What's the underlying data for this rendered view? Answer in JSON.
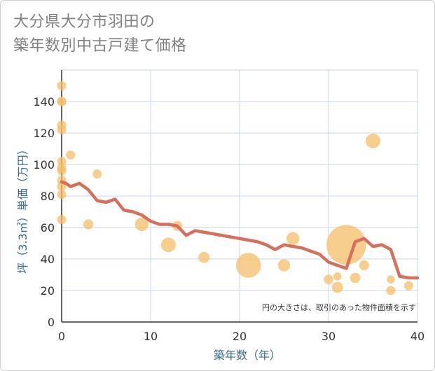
{
  "title": {
    "line1": "大分県大分市羽田の",
    "line2": "築年数別中古戸建て価格"
  },
  "chart_data": {
    "type": "scatter",
    "xlabel": "築年数（年）",
    "ylabel": "坪（3.3㎡）単価（万円）",
    "xlim": [
      0,
      40
    ],
    "ylim": [
      0,
      160
    ],
    "xticks": [
      0,
      10,
      20,
      30,
      40
    ],
    "yticks": [
      0,
      20,
      40,
      60,
      80,
      100,
      120,
      140
    ],
    "grid": true,
    "annotation": "円の大きさは、取引のあった物件面積を示す",
    "colors": {
      "bubble": "#f5be6a",
      "line": "#d4705c",
      "grid": "#c8d6e5",
      "axis": "#333333"
    },
    "bubbles": [
      {
        "x": 0,
        "y": 150,
        "size": 1
      },
      {
        "x": 0,
        "y": 140,
        "size": 1
      },
      {
        "x": 0,
        "y": 140,
        "size": 1
      },
      {
        "x": 0,
        "y": 125,
        "size": 1
      },
      {
        "x": 0,
        "y": 122,
        "size": 1
      },
      {
        "x": 0,
        "y": 102,
        "size": 1
      },
      {
        "x": 0,
        "y": 98,
        "size": 1
      },
      {
        "x": 0,
        "y": 96,
        "size": 1
      },
      {
        "x": 0,
        "y": 90,
        "size": 1
      },
      {
        "x": 0,
        "y": 86,
        "size": 1
      },
      {
        "x": 0,
        "y": 81,
        "size": 1
      },
      {
        "x": 0,
        "y": 65,
        "size": 1
      },
      {
        "x": 1,
        "y": 106,
        "size": 1
      },
      {
        "x": 4,
        "y": 94,
        "size": 1
      },
      {
        "x": 3,
        "y": 62,
        "size": 1.2
      },
      {
        "x": 9,
        "y": 62,
        "size": 2.2
      },
      {
        "x": 12,
        "y": 49,
        "size": 2.6
      },
      {
        "x": 13,
        "y": 61,
        "size": 1.2
      },
      {
        "x": 16,
        "y": 41,
        "size": 1.5
      },
      {
        "x": 21,
        "y": 36,
        "size": 7.5
      },
      {
        "x": 25,
        "y": 36,
        "size": 1.8
      },
      {
        "x": 26,
        "y": 53,
        "size": 2
      },
      {
        "x": 30,
        "y": 27,
        "size": 1.1
      },
      {
        "x": 31,
        "y": 29,
        "size": 0.8
      },
      {
        "x": 31,
        "y": 22,
        "size": 1.5
      },
      {
        "x": 32,
        "y": 49,
        "size": 19
      },
      {
        "x": 33,
        "y": 28,
        "size": 1.3
      },
      {
        "x": 34,
        "y": 36,
        "size": 1.2
      },
      {
        "x": 35,
        "y": 115,
        "size": 2.6
      },
      {
        "x": 37,
        "y": 27,
        "size": 0.8
      },
      {
        "x": 37,
        "y": 20,
        "size": 1
      },
      {
        "x": 39,
        "y": 23,
        "size": 1
      }
    ],
    "trend": {
      "x": [
        0,
        0.5,
        1,
        2,
        3,
        4,
        5,
        6,
        7,
        8,
        9,
        10,
        11,
        12,
        13,
        14,
        15,
        16,
        17,
        18,
        19,
        20,
        21,
        22,
        23,
        24,
        25,
        26,
        27,
        28,
        29,
        30,
        31,
        32,
        33,
        34,
        35,
        36,
        37,
        38,
        39,
        40
      ],
      "y": [
        89,
        88,
        86,
        88,
        84,
        77,
        76,
        78,
        71,
        70,
        68,
        64,
        62,
        62,
        61,
        55,
        58,
        57,
        56,
        55,
        54,
        53,
        52,
        51,
        49,
        46,
        49,
        48,
        47,
        45,
        43,
        38,
        36,
        34,
        51,
        53,
        48,
        49,
        46,
        29,
        28,
        28
      ]
    }
  }
}
